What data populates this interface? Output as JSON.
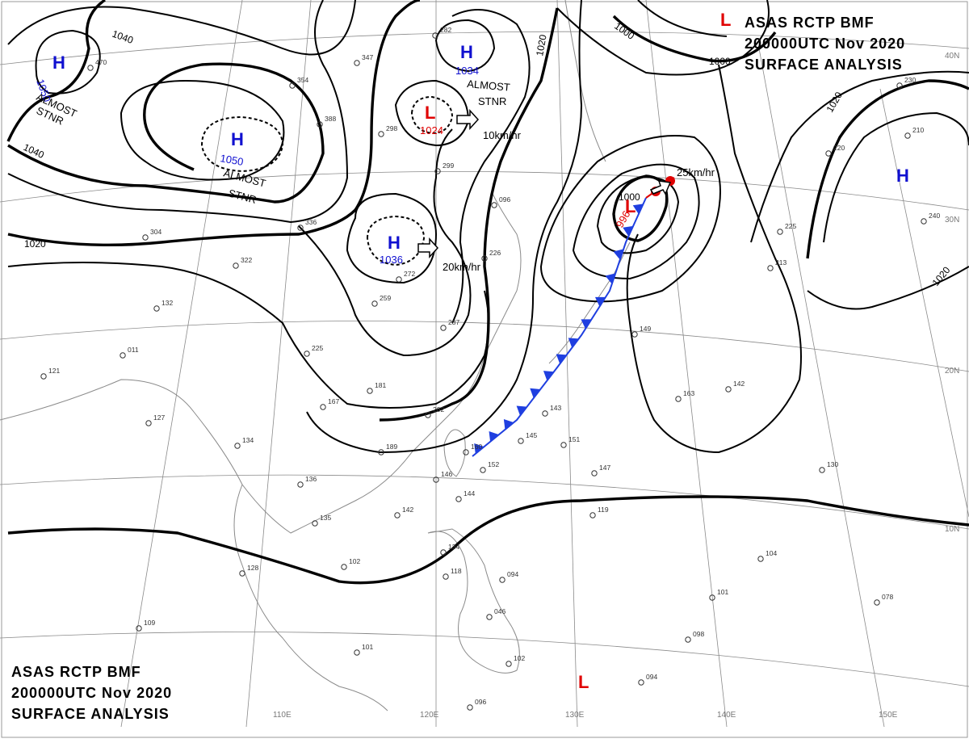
{
  "header": {
    "agency_line": "ASAS   RCTP   BMF",
    "time_line": "200000UTC   Nov   2020",
    "product_line": "SURFACE ANALYSIS"
  },
  "grid_labels": {
    "lon": [
      "110E",
      "120E",
      "130E",
      "140E",
      "150E"
    ],
    "lat": [
      "40N",
      "30N",
      "20N",
      "10N"
    ]
  },
  "isobar_labels": [
    "1040",
    "1040",
    "1020",
    "1020",
    "1020",
    "1020",
    "1000",
    "1000",
    "1000"
  ],
  "pressure_centers": [
    {
      "type": "H",
      "value": "1050"
    },
    {
      "type": "H",
      "value": "1050"
    },
    {
      "type": "H",
      "value": "1034"
    },
    {
      "type": "H",
      "value": "1036"
    },
    {
      "type": "H",
      "value": ""
    },
    {
      "type": "L",
      "value": "1024"
    },
    {
      "type": "L",
      "value": "996"
    },
    {
      "type": "L",
      "value": ""
    },
    {
      "type": "L",
      "value": ""
    }
  ],
  "annotations": {
    "stnr_1": [
      "ALMOST",
      "STNR"
    ],
    "stnr_2": [
      "ALMOST",
      "STNR"
    ],
    "stnr_3": [
      "ALMOST",
      "STNR"
    ],
    "speed_1": "10km/hr",
    "speed_2": "20km/hr",
    "speed_3": "25km/hr"
  },
  "front": {
    "type": "cold-and-warm",
    "colors": {
      "cold": "#1f3fe0",
      "warm": "#e00000"
    }
  },
  "colors": {
    "high": "#1010d0",
    "low": "#e00000",
    "isobar": "#000000",
    "coast": "#8a8a8a"
  },
  "station_values": [
    "470",
    "354",
    "347",
    "282",
    "388",
    "298",
    "299",
    "336",
    "304",
    "322",
    "132",
    "011",
    "121",
    "127",
    "134",
    "136",
    "135",
    "102",
    "128",
    "109",
    "096",
    "226",
    "259",
    "272",
    "287",
    "225",
    "167",
    "181",
    "202",
    "189",
    "160",
    "152",
    "144",
    "146",
    "142",
    "134",
    "118",
    "094",
    "046",
    "101",
    "102",
    "143",
    "145",
    "151",
    "147",
    "119",
    "149",
    "163",
    "142",
    "130",
    "104",
    "101",
    "098",
    "094",
    "078",
    "096",
    "213",
    "225",
    "240",
    "210",
    "230",
    "220"
  ]
}
